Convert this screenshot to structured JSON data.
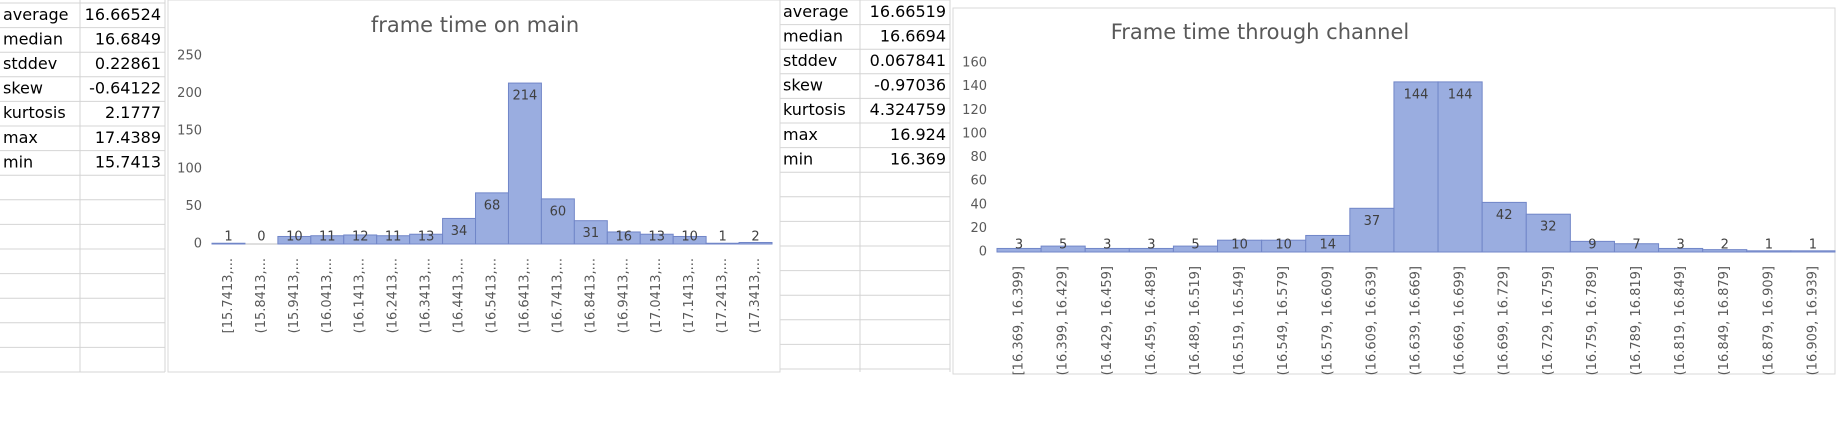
{
  "tables": [
    {
      "rows": [
        [
          "average",
          16.66524
        ],
        [
          "median",
          16.6849
        ],
        [
          "stddev",
          0.22861
        ],
        [
          "skew",
          -0.64122
        ],
        [
          "kurtosis",
          2.1777
        ],
        [
          "max",
          17.4389
        ],
        [
          "min",
          15.7413
        ]
      ]
    },
    {
      "rows": [
        [
          "average",
          16.66519
        ],
        [
          "median",
          16.6694
        ],
        [
          "stddev",
          0.067841
        ],
        [
          "skew",
          -0.97036
        ],
        [
          "kurtosis",
          4.324759
        ],
        [
          "max",
          16.924
        ],
        [
          "min",
          16.369
        ]
      ]
    }
  ],
  "chart_data": [
    {
      "type": "bar",
      "title": "frame time on main",
      "categories": [
        "[15.7413,...",
        "(15.8413,...",
        "(15.9413,...",
        "(16.0413,...",
        "(16.1413,...",
        "(16.2413,...",
        "(16.3413,...",
        "(16.4413,...",
        "(16.5413,...",
        "(16.6413,...",
        "(16.7413,...",
        "(16.8413,...",
        "(16.9413,...",
        "(17.0413,...",
        "(17.1413,...",
        "(17.2413,...",
        "(17.3413,..."
      ],
      "values": [
        1,
        0,
        10,
        11,
        12,
        11,
        13,
        34,
        68,
        214,
        60,
        31,
        16,
        13,
        10,
        1,
        2
      ],
      "color": "#9aade0",
      "ylim": [
        0,
        250
      ],
      "yticks": [
        0,
        50,
        100,
        150,
        200,
        250
      ],
      "grid": false
    },
    {
      "type": "bar",
      "title": "Frame time through channel",
      "categories": [
        "[16.369, 16.399]",
        "(16.399, 16.429]",
        "(16.429, 16.459]",
        "(16.459, 16.489]",
        "(16.489, 16.519]",
        "(16.519, 16.549]",
        "(16.549, 16.579]",
        "(16.579, 16.609]",
        "(16.609, 16.639]",
        "(16.639, 16.669]",
        "(16.669, 16.699]",
        "(16.699, 16.729]",
        "(16.729, 16.759]",
        "(16.759, 16.789]",
        "(16.789, 16.819]",
        "(16.819, 16.849]",
        "(16.849, 16.879]",
        "(16.879, 16.909]",
        "(16.909, 16.939]"
      ],
      "values": [
        3,
        5,
        3,
        3,
        5,
        10,
        10,
        14,
        37,
        144,
        144,
        42,
        32,
        9,
        7,
        3,
        2,
        1,
        1
      ],
      "color": "#9aade0",
      "ylim": [
        0,
        160
      ],
      "yticks": [
        0,
        20,
        40,
        60,
        80,
        100,
        120,
        140,
        160
      ],
      "grid": false
    }
  ]
}
